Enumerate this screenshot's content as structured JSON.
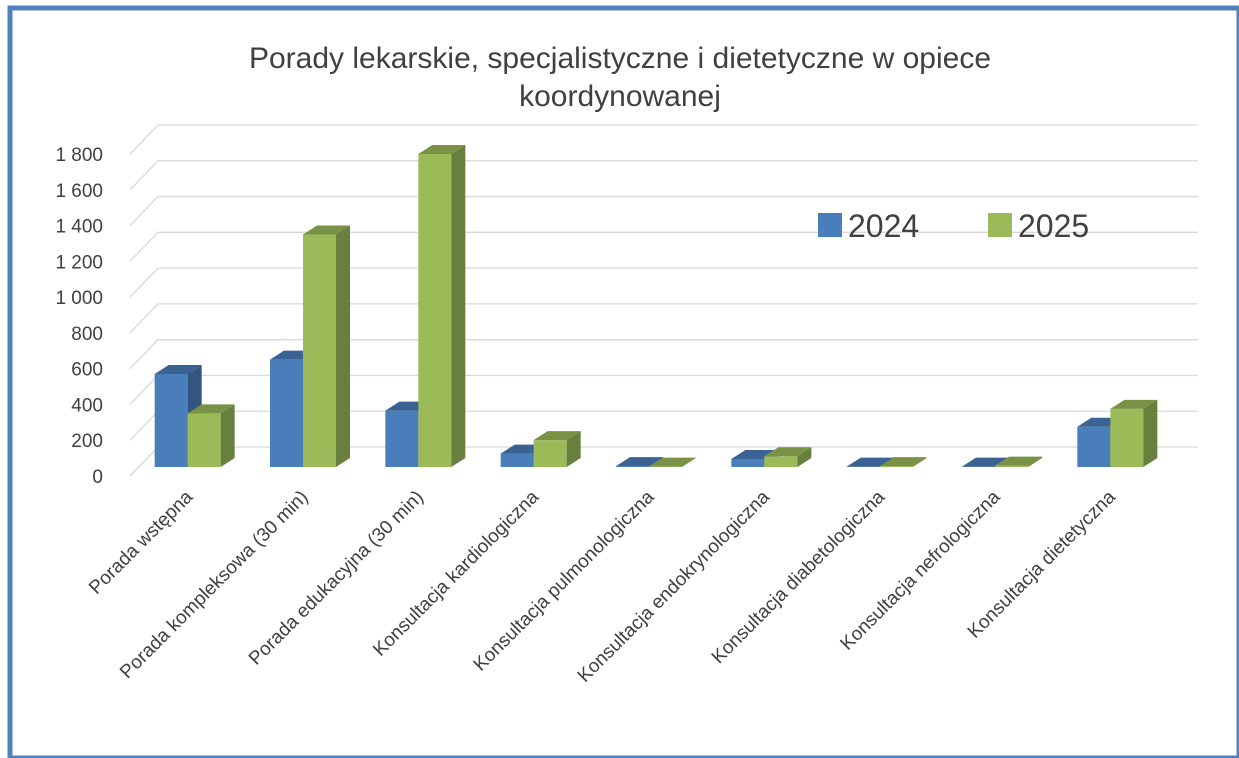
{
  "chart_data": {
    "type": "bar3d",
    "title": "Porady lekarskie, specjalistyczne i dietetyczne w opiece koordynowanej",
    "categories": [
      "Porada wstępna",
      "Porada kompleksowa (30 min)",
      "Porada edukacyjna (30 min)",
      "Konsultacja kardiologiczna",
      "Konsultacja pulmonologiczna",
      "Konsultacja endokrynologiczna",
      "Konsultacja diabetologiczna",
      "Konsultacja nefrologiczna",
      "Konsultacja dietetyczna"
    ],
    "series": [
      {
        "name": "2024",
        "color": "#4a7ebb",
        "values": [
          520,
          600,
          315,
          75,
          5,
          45,
          2,
          2,
          225
        ]
      },
      {
        "name": "2025",
        "color": "#9bbb59",
        "values": [
          300,
          1300,
          1750,
          150,
          2,
          60,
          5,
          8,
          325
        ]
      }
    ],
    "ylim": [
      0,
      1800
    ],
    "yticks": [
      0,
      200,
      400,
      600,
      800,
      {
        "value": 1000,
        "label": "1 000"
      },
      {
        "value": 1200,
        "label": "1 200"
      },
      {
        "value": 1400,
        "label": "1 400"
      },
      {
        "value": 1600,
        "label": "1 600"
      },
      {
        "value": 1800,
        "label": "1 800"
      }
    ],
    "grid": true,
    "legend": "top-right"
  }
}
